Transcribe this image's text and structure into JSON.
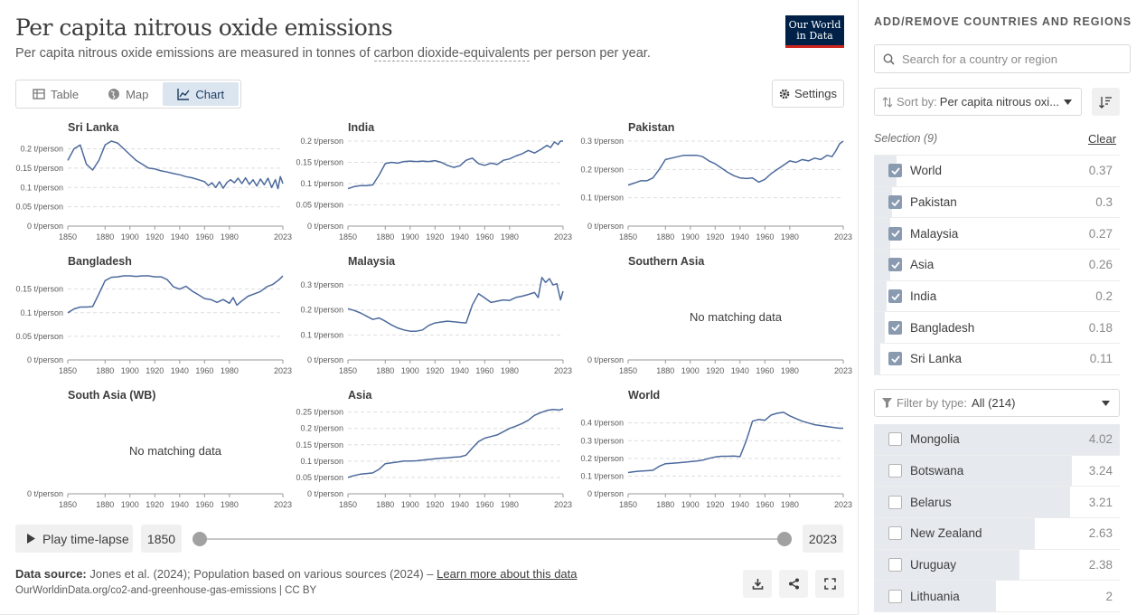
{
  "header": {
    "title": "Per capita nitrous oxide emissions",
    "subtitle_before": "Per capita nitrous oxide emissions are measured in tonnes of",
    "subtitle_link": "carbon dioxide-equivalents",
    "subtitle_after": "per person per year.",
    "logo_line1": "Our World",
    "logo_line2": "in Data"
  },
  "tabs": [
    {
      "label": "Table",
      "icon": "table-icon"
    },
    {
      "label": "Map",
      "icon": "globe-icon"
    },
    {
      "label": "Chart",
      "icon": "chart-icon"
    }
  ],
  "settings_label": "Settings",
  "chart_data": [
    {
      "type": "line",
      "title": "Sri Lanka",
      "unit": "t/person",
      "yticks": [
        0,
        0.05,
        0.1,
        0.15,
        0.2
      ],
      "yticklabels": [
        "0 t/person",
        "0.05 t/person",
        "0.1 t/person",
        "0.15 t/person",
        "0.2 t/person"
      ],
      "ylim": [
        0,
        0.22
      ],
      "x": [
        1850,
        1855,
        1860,
        1865,
        1870,
        1875,
        1880,
        1885,
        1890,
        1895,
        1900,
        1905,
        1910,
        1915,
        1920,
        1925,
        1930,
        1935,
        1940,
        1945,
        1950,
        1955,
        1960,
        1963,
        1966,
        1969,
        1972,
        1975,
        1978,
        1981,
        1984,
        1987,
        1990,
        1993,
        1996,
        1999,
        2002,
        2005,
        2008,
        2011,
        2014,
        2017,
        2019,
        2021,
        2023
      ],
      "values": [
        0.17,
        0.2,
        0.21,
        0.16,
        0.145,
        0.17,
        0.21,
        0.22,
        0.215,
        0.2,
        0.185,
        0.17,
        0.16,
        0.15,
        0.148,
        0.143,
        0.14,
        0.136,
        0.133,
        0.128,
        0.125,
        0.12,
        0.115,
        0.105,
        0.112,
        0.1,
        0.115,
        0.098,
        0.113,
        0.12,
        0.112,
        0.124,
        0.11,
        0.125,
        0.108,
        0.12,
        0.104,
        0.122,
        0.107,
        0.124,
        0.1,
        0.12,
        0.097,
        0.128,
        0.11
      ]
    },
    {
      "type": "line",
      "title": "India",
      "unit": "t/person",
      "yticks": [
        0,
        0.05,
        0.1,
        0.15,
        0.2
      ],
      "yticklabels": [
        "0 t/person",
        "0.05 t/person",
        "0.1 t/person",
        "0.15 t/person",
        "0.2 t/person"
      ],
      "ylim": [
        0,
        0.2
      ],
      "x": [
        1850,
        1855,
        1860,
        1865,
        1870,
        1875,
        1880,
        1885,
        1890,
        1895,
        1900,
        1905,
        1910,
        1915,
        1920,
        1925,
        1930,
        1935,
        1940,
        1945,
        1950,
        1955,
        1960,
        1965,
        1970,
        1975,
        1980,
        1985,
        1990,
        1995,
        2000,
        2005,
        2010,
        2013,
        2016,
        2019,
        2021,
        2023
      ],
      "values": [
        0.088,
        0.093,
        0.095,
        0.095,
        0.097,
        0.12,
        0.147,
        0.15,
        0.148,
        0.152,
        0.153,
        0.152,
        0.153,
        0.152,
        0.154,
        0.15,
        0.143,
        0.138,
        0.142,
        0.155,
        0.16,
        0.147,
        0.143,
        0.148,
        0.145,
        0.155,
        0.158,
        0.165,
        0.17,
        0.178,
        0.172,
        0.18,
        0.19,
        0.185,
        0.198,
        0.192,
        0.2,
        0.2
      ]
    },
    {
      "type": "line",
      "title": "Pakistan",
      "unit": "t/person",
      "yticks": [
        0,
        0.1,
        0.2,
        0.3
      ],
      "yticklabels": [
        "0 t/person",
        "0.1 t/person",
        "0.2 t/person",
        "0.3 t/person"
      ],
      "ylim": [
        0,
        0.3
      ],
      "x": [
        1850,
        1855,
        1860,
        1865,
        1870,
        1875,
        1880,
        1885,
        1890,
        1895,
        1900,
        1905,
        1910,
        1915,
        1920,
        1925,
        1930,
        1935,
        1940,
        1945,
        1950,
        1955,
        1960,
        1965,
        1970,
        1975,
        1980,
        1985,
        1990,
        1995,
        2000,
        2005,
        2010,
        2014,
        2017,
        2020,
        2023
      ],
      "values": [
        0.145,
        0.152,
        0.16,
        0.16,
        0.17,
        0.2,
        0.235,
        0.24,
        0.245,
        0.25,
        0.25,
        0.25,
        0.245,
        0.23,
        0.22,
        0.205,
        0.19,
        0.178,
        0.17,
        0.168,
        0.17,
        0.155,
        0.165,
        0.185,
        0.2,
        0.215,
        0.23,
        0.225,
        0.235,
        0.23,
        0.24,
        0.235,
        0.25,
        0.245,
        0.265,
        0.29,
        0.3
      ]
    },
    {
      "type": "line",
      "title": "Bangladesh",
      "unit": "t/person",
      "yticks": [
        0,
        0.05,
        0.1,
        0.15
      ],
      "yticklabels": [
        "0 t/person",
        "0.05 t/person",
        "0.1 t/person",
        "0.15 t/person"
      ],
      "ylim": [
        0,
        0.18
      ],
      "x": [
        1850,
        1855,
        1860,
        1865,
        1870,
        1875,
        1880,
        1885,
        1890,
        1895,
        1900,
        1905,
        1910,
        1915,
        1920,
        1925,
        1930,
        1935,
        1940,
        1945,
        1950,
        1955,
        1960,
        1965,
        1970,
        1975,
        1980,
        1983,
        1986,
        1990,
        1995,
        2000,
        2005,
        2010,
        2015,
        2020,
        2023
      ],
      "values": [
        0.1,
        0.108,
        0.112,
        0.112,
        0.113,
        0.14,
        0.168,
        0.175,
        0.176,
        0.178,
        0.178,
        0.177,
        0.178,
        0.178,
        0.176,
        0.176,
        0.17,
        0.155,
        0.15,
        0.156,
        0.146,
        0.138,
        0.13,
        0.128,
        0.122,
        0.128,
        0.12,
        0.132,
        0.116,
        0.125,
        0.135,
        0.14,
        0.145,
        0.155,
        0.16,
        0.17,
        0.178
      ]
    },
    {
      "type": "line",
      "title": "Malaysia",
      "unit": "t/person",
      "yticks": [
        0,
        0.1,
        0.2,
        0.3
      ],
      "yticklabels": [
        "0 t/person",
        "0.1 t/person",
        "0.2 t/person",
        "0.3 t/person"
      ],
      "ylim": [
        0,
        0.34
      ],
      "x": [
        1850,
        1855,
        1860,
        1865,
        1870,
        1875,
        1880,
        1885,
        1890,
        1895,
        1900,
        1905,
        1910,
        1915,
        1920,
        1925,
        1930,
        1935,
        1940,
        1945,
        1950,
        1955,
        1960,
        1965,
        1970,
        1975,
        1980,
        1985,
        1990,
        1995,
        2000,
        2003,
        2006,
        2009,
        2012,
        2015,
        2018,
        2021,
        2023
      ],
      "values": [
        0.205,
        0.198,
        0.188,
        0.175,
        0.162,
        0.168,
        0.155,
        0.14,
        0.128,
        0.12,
        0.115,
        0.115,
        0.12,
        0.138,
        0.148,
        0.152,
        0.155,
        0.153,
        0.15,
        0.148,
        0.22,
        0.265,
        0.248,
        0.23,
        0.235,
        0.24,
        0.238,
        0.25,
        0.255,
        0.262,
        0.27,
        0.25,
        0.33,
        0.31,
        0.325,
        0.3,
        0.305,
        0.24,
        0.275
      ]
    },
    {
      "type": "line",
      "title": "Southern Asia",
      "unit": "t/person",
      "yticks": [
        0
      ],
      "yticklabels": [
        "0 t/person"
      ],
      "ylim": [
        0,
        1
      ],
      "x": [],
      "values": [],
      "empty_label": "No matching data"
    },
    {
      "type": "line",
      "title": "South Asia (WB)",
      "unit": "t/person",
      "yticks": [
        0
      ],
      "yticklabels": [
        "0 t/person"
      ],
      "ylim": [
        0,
        1
      ],
      "x": [],
      "values": [],
      "empty_label": "No matching data"
    },
    {
      "type": "line",
      "title": "Asia",
      "unit": "t/person",
      "yticks": [
        0,
        0.05,
        0.1,
        0.15,
        0.2,
        0.25
      ],
      "yticklabels": [
        "0 t/person",
        "0.05 t/person",
        "0.1 t/person",
        "0.15 t/person",
        "0.2 t/person",
        "0.25 t/person"
      ],
      "ylim": [
        0,
        0.26
      ],
      "x": [
        1850,
        1855,
        1860,
        1865,
        1870,
        1875,
        1880,
        1885,
        1890,
        1895,
        1900,
        1905,
        1910,
        1915,
        1920,
        1925,
        1930,
        1935,
        1940,
        1945,
        1950,
        1955,
        1960,
        1965,
        1970,
        1975,
        1980,
        1985,
        1990,
        1995,
        2000,
        2005,
        2010,
        2015,
        2020,
        2023
      ],
      "values": [
        0.05,
        0.056,
        0.06,
        0.062,
        0.064,
        0.075,
        0.092,
        0.095,
        0.097,
        0.1,
        0.1,
        0.101,
        0.103,
        0.105,
        0.107,
        0.109,
        0.11,
        0.112,
        0.113,
        0.118,
        0.14,
        0.16,
        0.17,
        0.175,
        0.18,
        0.19,
        0.2,
        0.207,
        0.215,
        0.225,
        0.24,
        0.248,
        0.255,
        0.258,
        0.256,
        0.26
      ]
    },
    {
      "type": "line",
      "title": "World",
      "unit": "t/person",
      "yticks": [
        0,
        0.1,
        0.2,
        0.3,
        0.4
      ],
      "yticklabels": [
        "0 t/person",
        "0.1 t/person",
        "0.2 t/person",
        "0.3 t/person",
        "0.4 t/person"
      ],
      "ylim": [
        0,
        0.48
      ],
      "x": [
        1850,
        1855,
        1860,
        1865,
        1870,
        1875,
        1880,
        1885,
        1890,
        1895,
        1900,
        1905,
        1910,
        1915,
        1920,
        1925,
        1930,
        1935,
        1940,
        1945,
        1950,
        1955,
        1960,
        1965,
        1970,
        1975,
        1980,
        1985,
        1990,
        1995,
        2000,
        2005,
        2010,
        2015,
        2020,
        2023
      ],
      "values": [
        0.12,
        0.125,
        0.128,
        0.13,
        0.133,
        0.155,
        0.17,
        0.172,
        0.175,
        0.178,
        0.182,
        0.185,
        0.19,
        0.2,
        0.208,
        0.212,
        0.212,
        0.213,
        0.21,
        0.3,
        0.41,
        0.42,
        0.415,
        0.445,
        0.455,
        0.46,
        0.44,
        0.425,
        0.41,
        0.4,
        0.39,
        0.385,
        0.38,
        0.375,
        0.37,
        0.37
      ]
    }
  ],
  "x_ticks": [
    "1850",
    "1880",
    "1900",
    "1920",
    "1940",
    "1960",
    "1980",
    "2023"
  ],
  "x_tick_values": [
    1850,
    1880,
    1900,
    1920,
    1940,
    1960,
    1980,
    2023
  ],
  "x_range": [
    1850,
    2023
  ],
  "controls": {
    "play_label": "Play time-lapse",
    "start_year": "1850",
    "end_year": "2023"
  },
  "footer": {
    "source_label": "Data source:",
    "source_text": "Jones et al. (2024); Population based on various sources (2024) –",
    "learn_more": "Learn more about this data",
    "url": "OurWorldinData.org/co2-and-greenhouse-gas-emissions | CC BY"
  },
  "sidebar": {
    "heading": "ADD/REMOVE COUNTRIES AND REGIONS",
    "search_placeholder": "Search for a country or region",
    "sort_label": "Sort by:",
    "sort_value": "Per capita nitrous oxi...",
    "selection_label": "Selection (9)",
    "clear_label": "Clear",
    "selected": [
      {
        "name": "World",
        "value": "0.37",
        "frac": 0.092
      },
      {
        "name": "Pakistan",
        "value": "0.3",
        "frac": 0.075
      },
      {
        "name": "Malaysia",
        "value": "0.27",
        "frac": 0.067
      },
      {
        "name": "Asia",
        "value": "0.26",
        "frac": 0.065
      },
      {
        "name": "India",
        "value": "0.2",
        "frac": 0.05
      },
      {
        "name": "Bangladesh",
        "value": "0.18",
        "frac": 0.045
      },
      {
        "name": "Sri Lanka",
        "value": "0.11",
        "frac": 0.027
      }
    ],
    "filter_label": "Filter by type:",
    "filter_value": "All (214)",
    "available": [
      {
        "name": "Mongolia",
        "value": "4.02",
        "frac": 1.0
      },
      {
        "name": "Botswana",
        "value": "3.24",
        "frac": 0.806
      },
      {
        "name": "Belarus",
        "value": "3.21",
        "frac": 0.799
      },
      {
        "name": "New Zealand",
        "value": "2.63",
        "frac": 0.654
      },
      {
        "name": "Uruguay",
        "value": "2.38",
        "frac": 0.592
      },
      {
        "name": "Lithuania",
        "value": "2",
        "frac": 0.498
      }
    ]
  }
}
